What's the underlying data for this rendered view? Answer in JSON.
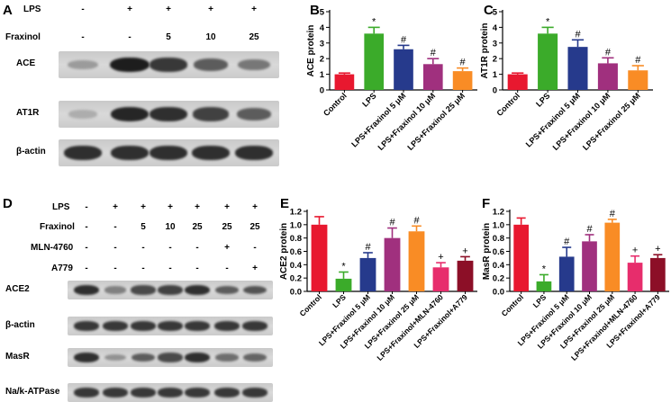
{
  "panels": {
    "A": "A",
    "B": "B",
    "C": "C",
    "D": "D",
    "E": "E",
    "F": "F"
  },
  "blot_top": {
    "treatment_rows": [
      {
        "label": "LPS",
        "marks": [
          "-",
          "+",
          "+",
          "+",
          "+"
        ]
      },
      {
        "label": "Fraxinol",
        "marks": [
          "-",
          "-",
          "5",
          "10",
          "25"
        ]
      }
    ],
    "bands": [
      {
        "label": "ACE",
        "intensity": [
          0.25,
          0.95,
          0.8,
          0.6,
          0.45
        ]
      },
      {
        "label": "AT1R",
        "intensity": [
          0.15,
          0.9,
          0.85,
          0.75,
          0.6
        ]
      },
      {
        "label": "β-actin",
        "intensity": [
          0.85,
          0.85,
          0.85,
          0.85,
          0.85
        ]
      }
    ]
  },
  "blot_bottom": {
    "treatment_rows": [
      {
        "label": "LPS",
        "marks": [
          "-",
          "+",
          "+",
          "+",
          "+",
          "+",
          "+"
        ]
      },
      {
        "label": "Fraxinol",
        "marks": [
          "-",
          "-",
          "5",
          "10",
          "25",
          "25",
          "25"
        ]
      },
      {
        "label": "MLN-4760",
        "marks": [
          "-",
          "-",
          "-",
          "-",
          "-",
          "+",
          "-"
        ]
      },
      {
        "label": "A779",
        "marks": [
          "-",
          "-",
          "-",
          "-",
          "-",
          "-",
          "+"
        ]
      }
    ],
    "bands": [
      {
        "label": "ACE2",
        "intensity": [
          0.85,
          0.4,
          0.7,
          0.75,
          0.85,
          0.6,
          0.65
        ]
      },
      {
        "label": "β-actin",
        "intensity": [
          0.8,
          0.8,
          0.8,
          0.8,
          0.8,
          0.8,
          0.8
        ]
      },
      {
        "label": "MasR",
        "intensity": [
          0.85,
          0.3,
          0.6,
          0.7,
          0.85,
          0.5,
          0.55
        ]
      },
      {
        "label": "Na/k-ATPase",
        "intensity": [
          0.8,
          0.8,
          0.8,
          0.8,
          0.8,
          0.8,
          0.8
        ]
      }
    ]
  },
  "colors": {
    "control": "#e8182f",
    "lps": "#3bab2a",
    "frax5": "#263a8c",
    "frax10": "#a0307e",
    "frax25": "#f98c25",
    "mln": "#e72d6c",
    "a779": "#8c0f27"
  },
  "chart_data": [
    {
      "id": "B",
      "type": "bar",
      "ylabel": "ACE protein",
      "ylim": [
        0,
        5
      ],
      "yticks": [
        0,
        1,
        2,
        3,
        4,
        5
      ],
      "categories": [
        "Control",
        "LPS",
        "LPS+Fraxinol 5 μM",
        "LPS+Fraxinol 10 μM",
        "LPS+Fraxinol 25 μM"
      ],
      "values": [
        1.0,
        3.6,
        2.6,
        1.65,
        1.2
      ],
      "errors": [
        0.08,
        0.4,
        0.25,
        0.35,
        0.2
      ],
      "annotations": [
        "",
        "*",
        "#",
        "#",
        "#"
      ]
    },
    {
      "id": "C",
      "type": "bar",
      "ylabel": "AT1R protein",
      "ylim": [
        0,
        5
      ],
      "yticks": [
        0,
        1,
        2,
        3,
        4,
        5
      ],
      "categories": [
        "Control",
        "LPS",
        "LPS+Fraxinol 5 μM",
        "LPS+Fraxinol 10 μM",
        "LPS+Fraxinol 25 μM"
      ],
      "values": [
        1.0,
        3.6,
        2.75,
        1.7,
        1.25
      ],
      "errors": [
        0.08,
        0.4,
        0.45,
        0.35,
        0.3
      ],
      "annotations": [
        "",
        "*",
        "#",
        "#",
        "#"
      ]
    },
    {
      "id": "E",
      "type": "bar",
      "ylabel": "ACE2 protein",
      "ylim": [
        0,
        1.2
      ],
      "yticks": [
        0.0,
        0.2,
        0.4,
        0.6,
        0.8,
        1.0,
        1.2
      ],
      "categories": [
        "Control",
        "LPS",
        "LPS+Fraxinol 5 μM",
        "LPS+Fraxinol 10 μM",
        "LPS+Fraxinol 25 μM",
        "LPS+Fraxinol+MLN-4760",
        "LPS+Fraxinol+A779"
      ],
      "values": [
        1.0,
        0.19,
        0.5,
        0.8,
        0.9,
        0.36,
        0.46
      ],
      "errors": [
        0.12,
        0.1,
        0.08,
        0.15,
        0.08,
        0.07,
        0.06
      ],
      "annotations": [
        "",
        "*",
        "#",
        "#",
        "#",
        "+",
        "+"
      ]
    },
    {
      "id": "F",
      "type": "bar",
      "ylabel": "MasR protein",
      "ylim": [
        0,
        1.2
      ],
      "yticks": [
        0.0,
        0.2,
        0.4,
        0.6,
        0.8,
        1.0,
        1.2
      ],
      "categories": [
        "Control",
        "LPS",
        "LPS+Fraxinol 5 μM",
        "LPS+Fraxinol 10 μM",
        "LPS+Fraxinol 25 μM",
        "LPS+Fraxinol+MLN-4760",
        "LPS+Fraxinol+A779"
      ],
      "values": [
        1.0,
        0.15,
        0.52,
        0.75,
        1.03,
        0.43,
        0.5
      ],
      "errors": [
        0.1,
        0.1,
        0.14,
        0.1,
        0.05,
        0.1,
        0.05
      ],
      "annotations": [
        "",
        "*",
        "#",
        "#",
        "#",
        "+",
        "+"
      ]
    }
  ]
}
